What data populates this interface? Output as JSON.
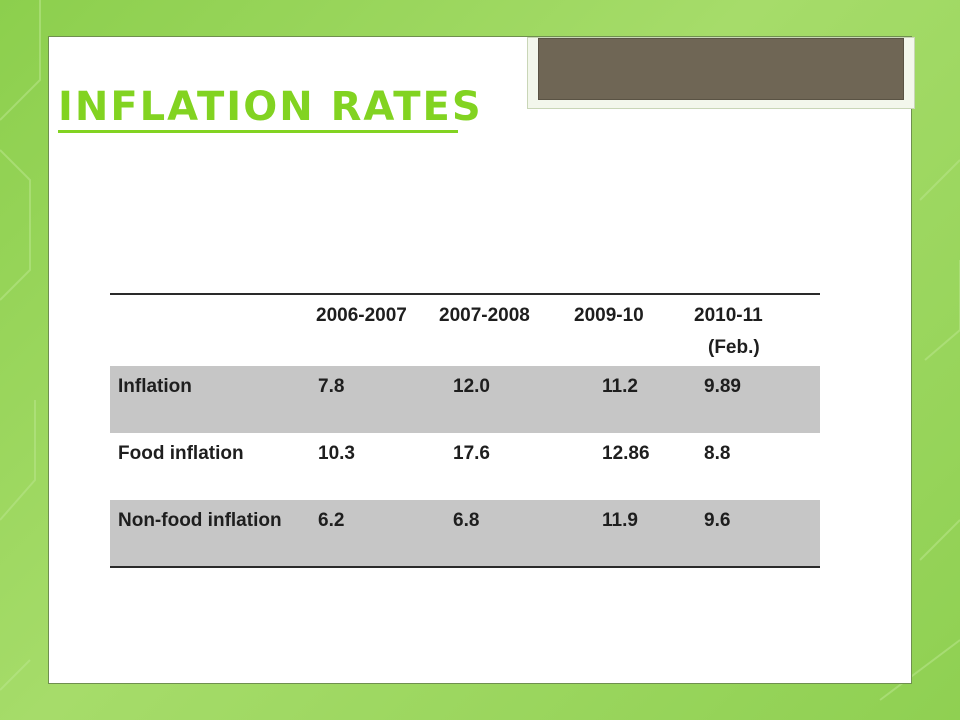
{
  "slide": {
    "title": "Inflation Rates"
  },
  "table": {
    "headers": [
      "",
      "2006-2007",
      "2007-2008",
      "2009-10",
      "2010-11",
      "(Feb.)"
    ],
    "rows": [
      {
        "label": "Inflation",
        "values": [
          "7.8",
          "12.0",
          "11.2",
          "9.89"
        ]
      },
      {
        "label": "Food inflation",
        "values": [
          "10.3",
          "17.6",
          "12.86",
          "8.8"
        ]
      },
      {
        "label": "Non-food inflation",
        "values": [
          "6.2",
          "6.8",
          "11.9",
          "9.6"
        ]
      }
    ]
  },
  "colors": {
    "background": "#8ccf4d",
    "title": "#82d321",
    "shaded_row": "#c6c6c6",
    "tab": "#6f6655"
  }
}
